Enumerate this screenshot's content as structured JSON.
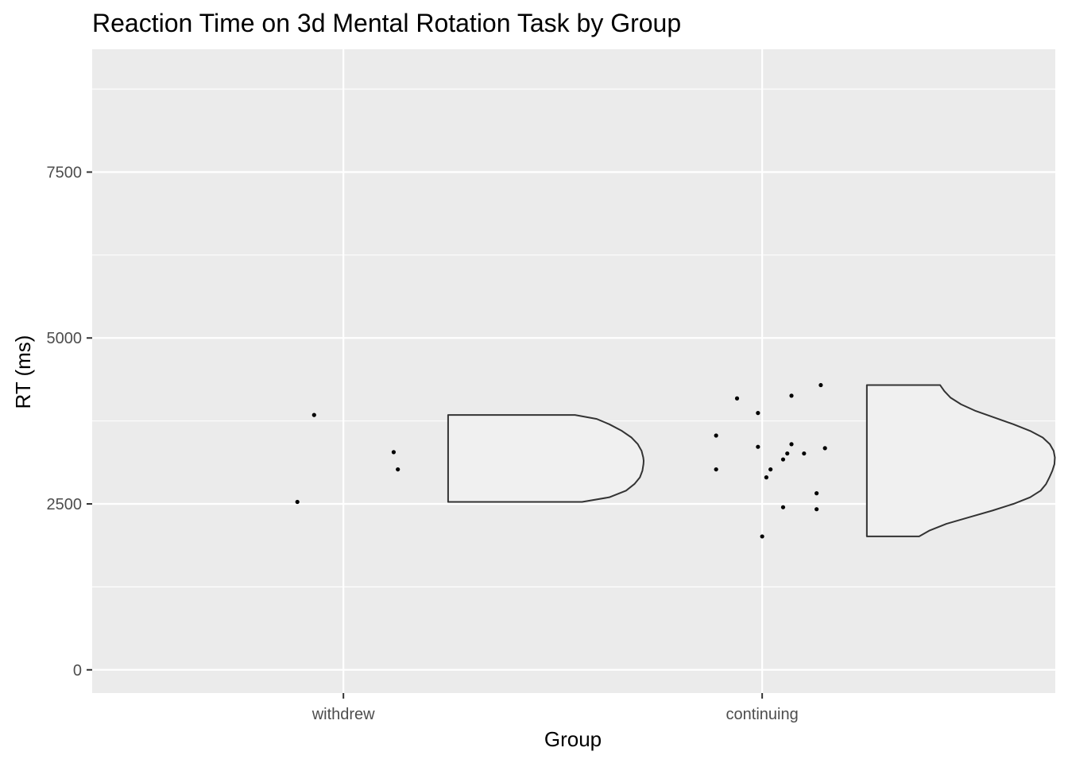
{
  "chart_data": {
    "type": "raincloud",
    "title": "Reaction Time on 3d Mental Rotation Task by Group",
    "xlabel": "Group",
    "ylabel": "RT (ms)",
    "ylim": [
      -350,
      9350
    ],
    "yticks": [
      0,
      2500,
      5000,
      7500
    ],
    "grid": true,
    "legend": "none",
    "categories": [
      "withdrew",
      "continuing"
    ],
    "points": [
      {
        "group": "withdrew",
        "jitter": -0.11,
        "y": 2530
      },
      {
        "group": "withdrew",
        "jitter": -0.07,
        "y": 3840
      },
      {
        "group": "withdrew",
        "jitter": 0.12,
        "y": 3280
      },
      {
        "group": "withdrew",
        "jitter": 0.13,
        "y": 3020
      },
      {
        "group": "continuing",
        "jitter": -0.11,
        "y": 3530
      },
      {
        "group": "continuing",
        "jitter": -0.11,
        "y": 3020
      },
      {
        "group": "continuing",
        "jitter": -0.06,
        "y": 4090
      },
      {
        "group": "continuing",
        "jitter": -0.01,
        "y": 3870
      },
      {
        "group": "continuing",
        "jitter": -0.01,
        "y": 3360
      },
      {
        "group": "continuing",
        "jitter": 0.0,
        "y": 2010
      },
      {
        "group": "continuing",
        "jitter": 0.01,
        "y": 2900
      },
      {
        "group": "continuing",
        "jitter": 0.02,
        "y": 3020
      },
      {
        "group": "continuing",
        "jitter": 0.05,
        "y": 2450
      },
      {
        "group": "continuing",
        "jitter": 0.05,
        "y": 3170
      },
      {
        "group": "continuing",
        "jitter": 0.06,
        "y": 3260
      },
      {
        "group": "continuing",
        "jitter": 0.07,
        "y": 3400
      },
      {
        "group": "continuing",
        "jitter": 0.07,
        "y": 4130
      },
      {
        "group": "continuing",
        "jitter": 0.1,
        "y": 3260
      },
      {
        "group": "continuing",
        "jitter": 0.13,
        "y": 2420
      },
      {
        "group": "continuing",
        "jitter": 0.13,
        "y": 2660
      },
      {
        "group": "continuing",
        "jitter": 0.14,
        "y": 4290
      },
      {
        "group": "continuing",
        "jitter": 0.15,
        "y": 3340
      }
    ],
    "clouds": [
      {
        "group": "withdrew",
        "offset_start": 0.25,
        "density": [
          {
            "y": 2530,
            "w": 0.32
          },
          {
            "y": 2600,
            "w": 0.385
          },
          {
            "y": 2700,
            "w": 0.425
          },
          {
            "y": 2800,
            "w": 0.445
          },
          {
            "y": 2900,
            "w": 0.458
          },
          {
            "y": 3000,
            "w": 0.464
          },
          {
            "y": 3100,
            "w": 0.4665
          },
          {
            "y": 3150,
            "w": 0.467
          },
          {
            "y": 3200,
            "w": 0.466
          },
          {
            "y": 3300,
            "w": 0.462
          },
          {
            "y": 3400,
            "w": 0.453
          },
          {
            "y": 3500,
            "w": 0.438
          },
          {
            "y": 3600,
            "w": 0.415
          },
          {
            "y": 3700,
            "w": 0.385
          },
          {
            "y": 3780,
            "w": 0.355
          },
          {
            "y": 3840,
            "w": 0.303
          }
        ]
      },
      {
        "group": "continuing",
        "offset_start": 0.25,
        "density": [
          {
            "y": 2010,
            "w": 0.125
          },
          {
            "y": 2100,
            "w": 0.15
          },
          {
            "y": 2200,
            "w": 0.19
          },
          {
            "y": 2300,
            "w": 0.245
          },
          {
            "y": 2400,
            "w": 0.3
          },
          {
            "y": 2500,
            "w": 0.35
          },
          {
            "y": 2600,
            "w": 0.39
          },
          {
            "y": 2700,
            "w": 0.415
          },
          {
            "y": 2800,
            "w": 0.428
          },
          {
            "y": 2900,
            "w": 0.436
          },
          {
            "y": 3000,
            "w": 0.443
          },
          {
            "y": 3100,
            "w": 0.448
          },
          {
            "y": 3200,
            "w": 0.449
          },
          {
            "y": 3300,
            "w": 0.446
          },
          {
            "y": 3400,
            "w": 0.437
          },
          {
            "y": 3500,
            "w": 0.42
          },
          {
            "y": 3600,
            "w": 0.39
          },
          {
            "y": 3700,
            "w": 0.35
          },
          {
            "y": 3800,
            "w": 0.305
          },
          {
            "y": 3900,
            "w": 0.26
          },
          {
            "y": 4000,
            "w": 0.225
          },
          {
            "y": 4100,
            "w": 0.2
          },
          {
            "y": 4200,
            "w": 0.185
          },
          {
            "y": 4290,
            "w": 0.175
          }
        ]
      }
    ]
  }
}
